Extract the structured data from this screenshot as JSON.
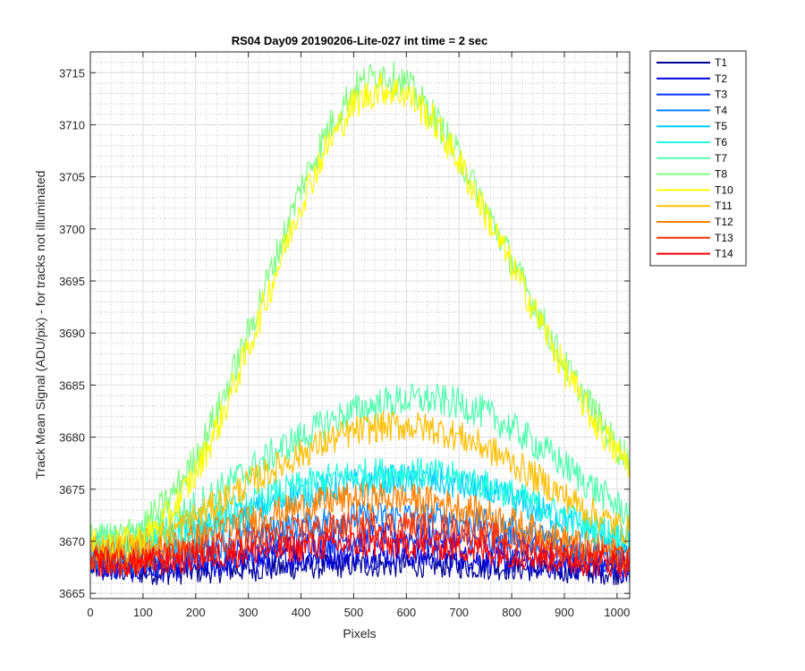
{
  "chart_data": {
    "type": "line",
    "title": "RS04 Day09 20190206-Lite-027 int time = 2 sec",
    "xlabel": "Pixels",
    "ylabel": "Track Mean Signal (ADU/pix) - for tracks not illuminated",
    "xlim": [
      0,
      1024
    ],
    "ylim": [
      3664.5,
      3717
    ],
    "xticks": [
      0,
      100,
      200,
      300,
      400,
      500,
      600,
      700,
      800,
      900,
      1000
    ],
    "yticks": [
      3665,
      3670,
      3675,
      3680,
      3685,
      3690,
      3695,
      3700,
      3705,
      3710,
      3715
    ],
    "grid": "major and minor",
    "legend_position": "outside-right-top",
    "x": [
      0,
      50,
      100,
      150,
      200,
      250,
      300,
      350,
      400,
      450,
      500,
      550,
      600,
      650,
      700,
      750,
      800,
      850,
      900,
      950,
      1000,
      1024
    ],
    "series": [
      {
        "name": "T1",
        "color": "#00008F",
        "values": [
          3667.5,
          3667.2,
          3667.0,
          3667.0,
          3667.1,
          3667.2,
          3667.3,
          3667.4,
          3667.5,
          3667.6,
          3667.7,
          3667.7,
          3667.7,
          3667.7,
          3667.6,
          3667.5,
          3667.4,
          3667.3,
          3667.2,
          3667.1,
          3667.0,
          3667.0
        ]
      },
      {
        "name": "T2",
        "color": "#0000DF",
        "values": [
          3667.6,
          3667.4,
          3667.3,
          3667.4,
          3667.6,
          3667.8,
          3668.0,
          3668.2,
          3668.4,
          3668.5,
          3668.6,
          3668.6,
          3668.6,
          3668.5,
          3668.4,
          3668.2,
          3668.0,
          3667.8,
          3667.6,
          3667.5,
          3667.4,
          3667.4
        ]
      },
      {
        "name": "T3",
        "color": "#0030FF",
        "values": [
          3668.0,
          3667.8,
          3667.7,
          3667.9,
          3668.3,
          3668.7,
          3669.1,
          3669.5,
          3669.8,
          3670.1,
          3670.3,
          3670.4,
          3670.4,
          3670.3,
          3670.1,
          3669.8,
          3669.4,
          3669.0,
          3668.6,
          3668.3,
          3668.0,
          3667.9
        ]
      },
      {
        "name": "T4",
        "color": "#0080FF",
        "values": [
          3668.5,
          3668.3,
          3668.3,
          3668.7,
          3669.3,
          3669.9,
          3670.5,
          3671.1,
          3671.6,
          3672.0,
          3672.3,
          3672.4,
          3672.4,
          3672.3,
          3672.0,
          3671.6,
          3671.0,
          3670.4,
          3669.8,
          3669.3,
          3668.8,
          3668.6
        ]
      },
      {
        "name": "T5",
        "color": "#00CFFF",
        "values": [
          3669.3,
          3669.2,
          3669.5,
          3670.1,
          3671.0,
          3671.9,
          3672.8,
          3673.7,
          3674.5,
          3675.1,
          3675.5,
          3675.8,
          3675.9,
          3675.8,
          3675.4,
          3674.8,
          3674.0,
          3673.0,
          3672.0,
          3671.1,
          3670.3,
          3670.0
        ]
      },
      {
        "name": "T6",
        "color": "#20FFDF",
        "values": [
          3669.6,
          3669.5,
          3669.8,
          3670.5,
          3671.5,
          3672.5,
          3673.5,
          3674.5,
          3675.3,
          3676.0,
          3676.4,
          3676.6,
          3676.7,
          3676.5,
          3676.1,
          3675.4,
          3674.5,
          3673.5,
          3672.4,
          3671.4,
          3670.6,
          3670.2
        ]
      },
      {
        "name": "T7",
        "color": "#50FFAF",
        "values": [
          3670.2,
          3670.1,
          3670.6,
          3671.8,
          3673.4,
          3675.1,
          3676.8,
          3678.5,
          3680.0,
          3681.4,
          3682.5,
          3683.2,
          3683.6,
          3683.6,
          3683.2,
          3682.3,
          3680.9,
          3679.2,
          3677.3,
          3675.3,
          3673.4,
          3672.5
        ]
      },
      {
        "name": "T8",
        "color": "#80FF80",
        "values": [
          3670.0,
          3670.3,
          3671.5,
          3674.0,
          3678.0,
          3683.5,
          3690.0,
          3697.0,
          3704.0,
          3709.5,
          3713.5,
          3715.0,
          3714.0,
          3711.0,
          3707.0,
          3702.0,
          3697.0,
          3692.0,
          3687.0,
          3683.0,
          3679.0,
          3678.0
        ]
      },
      {
        "name": "T10",
        "color": "#FFFF00",
        "values": [
          3669.5,
          3669.6,
          3670.2,
          3672.5,
          3676.5,
          3682.0,
          3688.5,
          3695.5,
          3702.5,
          3708.0,
          3712.0,
          3713.5,
          3713.0,
          3710.5,
          3706.5,
          3701.5,
          3696.5,
          3691.5,
          3686.5,
          3682.0,
          3678.5,
          3677.5
        ]
      },
      {
        "name": "T11",
        "color": "#FFBF00",
        "values": [
          3669.5,
          3669.3,
          3669.8,
          3670.8,
          3672.3,
          3673.9,
          3675.5,
          3677.0,
          3678.4,
          3679.6,
          3680.5,
          3681.0,
          3681.1,
          3680.8,
          3680.1,
          3679.0,
          3677.6,
          3676.0,
          3674.3,
          3672.8,
          3671.5,
          3671.0
        ]
      },
      {
        "name": "T12",
        "color": "#FF8000",
        "values": [
          3668.8,
          3668.6,
          3668.8,
          3669.4,
          3670.3,
          3671.2,
          3672.0,
          3672.7,
          3673.3,
          3673.8,
          3674.1,
          3674.2,
          3674.1,
          3673.8,
          3673.3,
          3672.6,
          3671.8,
          3670.9,
          3670.1,
          3669.4,
          3668.9,
          3668.7
        ]
      },
      {
        "name": "T13",
        "color": "#FF3000",
        "values": [
          3668.4,
          3668.2,
          3668.2,
          3668.5,
          3669.0,
          3669.6,
          3670.1,
          3670.6,
          3671.0,
          3671.3,
          3671.5,
          3671.6,
          3671.6,
          3671.4,
          3671.1,
          3670.6,
          3670.1,
          3669.5,
          3669.0,
          3668.6,
          3668.3,
          3668.2
        ]
      },
      {
        "name": "T14",
        "color": "#FF0000",
        "values": [
          3668.0,
          3667.9,
          3667.9,
          3668.1,
          3668.4,
          3668.7,
          3669.0,
          3669.2,
          3669.4,
          3669.6,
          3669.7,
          3669.7,
          3669.7,
          3669.6,
          3669.4,
          3669.1,
          3668.8,
          3668.5,
          3668.2,
          3668.0,
          3667.9,
          3667.9
        ]
      }
    ]
  }
}
